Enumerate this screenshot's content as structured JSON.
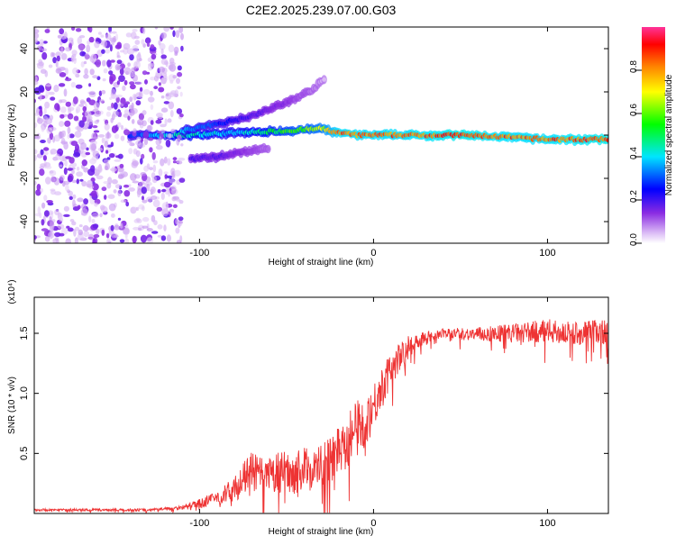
{
  "title": "C2E2.2025.239.07.00.G03",
  "chart_data": [
    {
      "type": "heatmap",
      "title": "C2E2.2025.239.07.00.G03",
      "xlabel": "Height of straight line (km)",
      "ylabel": "Frequency (Hz)",
      "xlim": [
        -195,
        135
      ],
      "ylim": [
        -50,
        50
      ],
      "xticks": [
        -100,
        0,
        100
      ],
      "xtick_labels": [
        "-100",
        "0",
        "100"
      ],
      "yticks": [
        -40,
        -20,
        0,
        20,
        40
      ],
      "ytick_labels": [
        "-40",
        "-20",
        "0",
        "20",
        "40"
      ],
      "colorbar": {
        "label": "Normalized spectral amplitude",
        "range": [
          0,
          1
        ],
        "ticks": [
          0.0,
          0.2,
          0.4,
          0.6,
          0.8
        ],
        "tick_labels": [
          "0.0",
          "0.2",
          "0.4",
          "0.6",
          "0.8"
        ]
      },
      "features": [
        {
          "name": "main-signal",
          "x": [
            -140,
            -110,
            -80,
            -50,
            -30,
            -20,
            -10,
            0,
            20,
            50,
            80,
            100,
            135
          ],
          "freq_hz": [
            0,
            0,
            1,
            2,
            3,
            1,
            0,
            0,
            0,
            0,
            -1,
            -2,
            -2
          ],
          "amplitude": [
            0.3,
            0.5,
            0.4,
            0.6,
            0.7,
            0.9,
            0.9,
            0.9,
            0.9,
            0.95,
            0.9,
            0.9,
            0.95
          ]
        },
        {
          "name": "rising-branch",
          "x": [
            -110,
            -90,
            -70,
            -50,
            -35,
            -28
          ],
          "freq_hz": [
            2,
            5,
            9,
            15,
            21,
            26
          ],
          "amplitude": [
            0.4,
            0.3,
            0.2,
            0.15,
            0.1,
            0.05
          ]
        },
        {
          "name": "lower-branch",
          "x": [
            -105,
            -90,
            -75,
            -60
          ],
          "freq_hz": [
            -11,
            -10,
            -8,
            -6
          ],
          "amplitude": [
            0.2,
            0.2,
            0.15,
            0.1
          ]
        },
        {
          "name": "noise-region",
          "x_range": [
            -195,
            -110
          ],
          "amplitude": 0.1
        }
      ]
    },
    {
      "type": "line",
      "xlabel": "Height of straight line (km)",
      "ylabel": "SNR (10 * v/v)",
      "y_multiplier": "(x10⁴)",
      "xlim": [
        -195,
        135
      ],
      "ylim": [
        0,
        1.8
      ],
      "xticks": [
        -100,
        0,
        100
      ],
      "xtick_labels": [
        "-100",
        "0",
        "100"
      ],
      "yticks": [
        0.5,
        1.0,
        1.5
      ],
      "ytick_labels": [
        "0.5",
        "1.0",
        "1.5"
      ],
      "color": "#ee3333",
      "series": [
        {
          "name": "SNR",
          "x": [
            -195,
            -180,
            -160,
            -140,
            -130,
            -120,
            -110,
            -100,
            -90,
            -80,
            -75,
            -70,
            -65,
            -60,
            -55,
            -50,
            -45,
            -40,
            -35,
            -30,
            -25,
            -20,
            -15,
            -10,
            -5,
            0,
            5,
            10,
            15,
            20,
            25,
            30,
            35,
            40,
            50,
            60,
            70,
            80,
            90,
            100,
            110,
            120,
            130,
            135
          ],
          "y": [
            0.03,
            0.03,
            0.03,
            0.03,
            0.03,
            0.04,
            0.05,
            0.08,
            0.13,
            0.2,
            0.28,
            0.35,
            0.32,
            0.3,
            0.34,
            0.35,
            0.33,
            0.38,
            0.36,
            0.4,
            0.45,
            0.55,
            0.62,
            0.7,
            0.75,
            0.9,
            1.05,
            1.2,
            1.3,
            1.38,
            1.44,
            1.47,
            1.48,
            1.5,
            1.5,
            1.49,
            1.5,
            1.5,
            1.51,
            1.52,
            1.5,
            1.5,
            1.52,
            1.5
          ],
          "noise": [
            0.01,
            0.01,
            0.01,
            0.01,
            0.01,
            0.01,
            0.02,
            0.04,
            0.06,
            0.1,
            0.14,
            0.16,
            0.16,
            0.16,
            0.17,
            0.17,
            0.17,
            0.18,
            0.18,
            0.19,
            0.2,
            0.22,
            0.24,
            0.24,
            0.22,
            0.2,
            0.17,
            0.14,
            0.12,
            0.1,
            0.07,
            0.05,
            0.04,
            0.04,
            0.05,
            0.06,
            0.07,
            0.08,
            0.09,
            0.1,
            0.1,
            0.1,
            0.11,
            0.11
          ]
        }
      ]
    }
  ],
  "colors": {
    "line": "#ee3333",
    "axis": "#000000"
  }
}
